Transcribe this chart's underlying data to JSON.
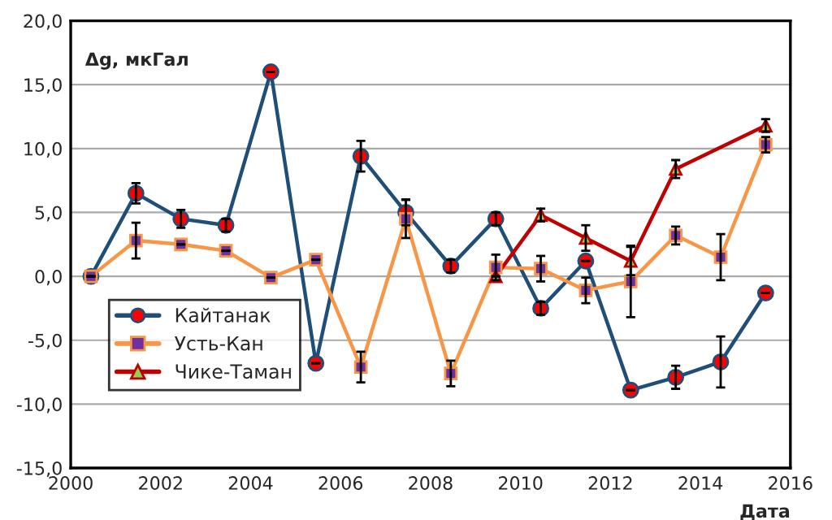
{
  "chart_data": {
    "type": "line",
    "ylabel": "Δg, мкГал",
    "xlabel": "Дата",
    "xlim": [
      2000,
      2016
    ],
    "xticks": [
      2000,
      2002,
      2004,
      2006,
      2008,
      2010,
      2012,
      2014,
      2016
    ],
    "ylim": [
      -15,
      20
    ],
    "yticks": [
      {
        "value": -15,
        "label": "-15,0"
      },
      {
        "value": -10,
        "label": "-10,0"
      },
      {
        "value": -5,
        "label": "-5,0"
      },
      {
        "value": 0,
        "label": "0,0"
      },
      {
        "value": 5,
        "label": "5,0"
      },
      {
        "value": 10,
        "label": "10,0"
      },
      {
        "value": 15,
        "label": "15,0"
      },
      {
        "value": 20,
        "label": "20,0"
      }
    ],
    "grid": "y",
    "legend": "left",
    "line_style": "solid",
    "series": [
      {
        "name": "Кайтанак",
        "color": "#1f4e79",
        "marker": "circle",
        "x": [
          2000.45,
          2001.45,
          2002.45,
          2003.45,
          2004.45,
          2005.45,
          2006.45,
          2007.45,
          2008.45,
          2009.45,
          2010.45,
          2011.45,
          2012.45,
          2013.45,
          2014.45,
          2015.45
        ],
        "values": [
          0.0,
          6.5,
          4.5,
          4.0,
          16.0,
          -6.8,
          9.4,
          5.0,
          0.8,
          4.5,
          -2.5,
          1.2,
          -8.9,
          -7.9,
          -6.7,
          -1.3
        ],
        "errors": [
          null,
          0.8,
          0.7,
          0.5,
          null,
          null,
          1.2,
          1.0,
          0.5,
          0.5,
          0.5,
          null,
          null,
          0.9,
          2.0,
          null
        ]
      },
      {
        "name": "Усть-Кан",
        "color": "#f79646",
        "marker": "square",
        "x": [
          2000.45,
          2001.45,
          2002.45,
          2003.45,
          2004.45,
          2005.45,
          2006.45,
          2007.45,
          2008.45,
          2009.45,
          2010.45,
          2011.45,
          2012.45,
          2013.45,
          2014.45,
          2015.45
        ],
        "values": [
          0.0,
          2.8,
          2.5,
          2.0,
          -0.1,
          1.3,
          -7.1,
          4.5,
          -7.6,
          0.7,
          0.6,
          -1.1,
          -0.4,
          3.2,
          1.5,
          10.3
        ],
        "errors": [
          null,
          1.4,
          null,
          null,
          null,
          null,
          1.2,
          1.5,
          1.0,
          1.0,
          1.0,
          1.0,
          2.8,
          0.7,
          1.8,
          0.6
        ]
      },
      {
        "name": "Чике-Таман",
        "color": "#c00000",
        "marker": "triangle",
        "x": [
          2009.45,
          2010.45,
          2011.45,
          2012.45,
          2013.45,
          2015.45
        ],
        "values": [
          0.0,
          4.8,
          3.0,
          1.2,
          8.4,
          11.8
        ],
        "errors": [
          null,
          0.5,
          1.0,
          1.1,
          0.7,
          0.5
        ]
      }
    ]
  }
}
